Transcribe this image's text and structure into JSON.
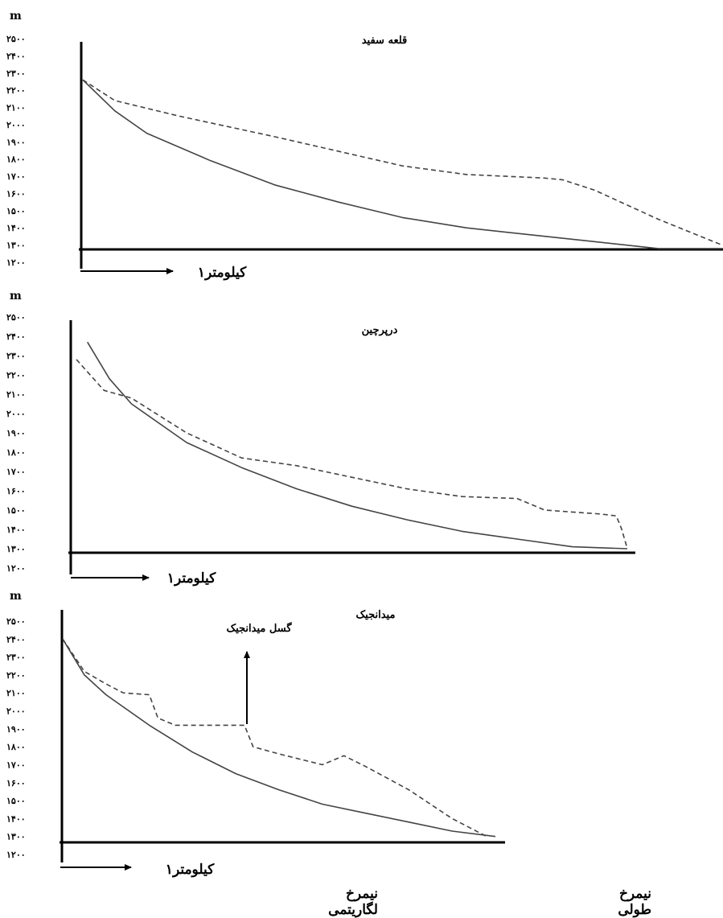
{
  "charts": [
    {
      "title": "قلعه سفید",
      "unit": "m",
      "scale_label": "۱کیلومتر",
      "yticks": [
        "۱۲۰۰",
        "۱۳۰۰",
        "۱۴۰۰",
        "۱۵۰۰",
        "۱۶۰۰",
        "۱۷۰۰",
        "۱۸۰۰",
        "۱۹۰۰",
        "۲۰۰۰",
        "۲۱۰۰",
        "۲۲۰۰",
        "۲۳۰۰",
        "۲۴۰۰",
        "۲۵۰۰"
      ]
    },
    {
      "title": "درپرچین",
      "unit": "m",
      "scale_label": "۱کیلومتر",
      "yticks": [
        "۱۲۰۰",
        "۱۳۰۰",
        "۱۴۰۰",
        "۱۵۰۰",
        "۱۶۰۰",
        "۱۷۰۰",
        "۱۸۰۰",
        "۱۹۰۰",
        "۲۰۰۰",
        "۲۱۰۰",
        "۲۲۰۰",
        "۲۳۰۰",
        "۲۴۰۰",
        "۲۵۰۰"
      ]
    },
    {
      "title": "میدانجیک",
      "unit": "m",
      "scale_label": "۱کیلومتر",
      "annotation": "گسل میدانجیک",
      "yticks": [
        "۱۲۰۰",
        "۱۳۰۰",
        "۱۴۰۰",
        "۱۵۰۰",
        "۱۶۰۰",
        "۱۷۰۰",
        "۱۸۰۰",
        "۱۹۰۰",
        "۲۰۰۰",
        "۲۱۰۰",
        "۲۲۰۰",
        "۲۳۰۰",
        "۲۴۰۰",
        "۲۵۰۰"
      ]
    }
  ],
  "legend": {
    "logarithmic": "نیمرخ لگاریتمی",
    "longitudinal": "نیمرخ طولی"
  },
  "chart_data": [
    {
      "type": "line",
      "title": "قلعه سفید",
      "ylabel": "m",
      "xlabel": "۱کیلومتر",
      "ylim": [
        1200,
        2500
      ],
      "xlim": [
        0,
        1
      ],
      "grid": false,
      "series": [
        {
          "name": "نیمرخ طولی",
          "style": "dashed",
          "x": [
            0,
            0.05,
            0.15,
            0.3,
            0.5,
            0.6,
            0.72,
            0.75,
            0.8,
            0.9,
            1.0
          ],
          "y": [
            2260,
            2140,
            2050,
            1930,
            1760,
            1710,
            1690,
            1680,
            1620,
            1450,
            1300
          ]
        },
        {
          "name": "نیمرخ لگاریتمی",
          "style": "solid",
          "x": [
            0,
            0.05,
            0.1,
            0.2,
            0.3,
            0.4,
            0.5,
            0.6,
            0.7,
            0.8,
            0.9,
            1.0
          ],
          "y": [
            2260,
            2080,
            1950,
            1790,
            1650,
            1550,
            1460,
            1400,
            1360,
            1320,
            1280,
            1280
          ]
        }
      ]
    },
    {
      "type": "line",
      "title": "درپرچین",
      "ylabel": "m",
      "xlabel": "۱کیلومتر",
      "ylim": [
        1200,
        2500
      ],
      "xlim": [
        0,
        1
      ],
      "grid": false,
      "series": [
        {
          "name": "نیمرخ طولی",
          "style": "dashed",
          "x": [
            0,
            0.05,
            0.1,
            0.2,
            0.3,
            0.4,
            0.5,
            0.6,
            0.7,
            0.8,
            0.85,
            0.9,
            0.95,
            0.98,
            0.99,
            1.0
          ],
          "y": [
            2280,
            2120,
            2080,
            1900,
            1770,
            1730,
            1670,
            1610,
            1570,
            1560,
            1500,
            1490,
            1480,
            1470,
            1400,
            1300
          ]
        },
        {
          "name": "نیمرخ لگاریتمی",
          "style": "solid",
          "x": [
            0.02,
            0.06,
            0.1,
            0.2,
            0.3,
            0.4,
            0.5,
            0.6,
            0.7,
            0.8,
            0.9,
            1.0
          ],
          "y": [
            2370,
            2180,
            2050,
            1850,
            1720,
            1610,
            1520,
            1450,
            1390,
            1350,
            1310,
            1300
          ]
        }
      ]
    },
    {
      "type": "line",
      "title": "میدانجیک",
      "ylabel": "m",
      "xlabel": "۱کیلومتر",
      "ylim": [
        1200,
        2500
      ],
      "xlim": [
        0,
        1
      ],
      "grid": false,
      "annotations": [
        {
          "text": "گسل میدانجیک",
          "x": 0.4,
          "y": 1820
        }
      ],
      "series": [
        {
          "name": "نیمرخ طولی",
          "style": "dashed",
          "x": [
            0,
            0.05,
            0.1,
            0.14,
            0.2,
            0.22,
            0.26,
            0.3,
            0.42,
            0.44,
            0.5,
            0.6,
            0.65,
            0.7,
            0.8,
            0.9,
            0.98
          ],
          "y": [
            2400,
            2220,
            2150,
            2100,
            2090,
            1960,
            1920,
            1920,
            1920,
            1800,
            1760,
            1700,
            1750,
            1690,
            1560,
            1400,
            1300
          ]
        },
        {
          "name": "نیمرخ لگاریتمی",
          "style": "solid",
          "x": [
            0,
            0.05,
            0.1,
            0.2,
            0.3,
            0.4,
            0.5,
            0.6,
            0.7,
            0.8,
            0.9,
            1.0
          ],
          "y": [
            2400,
            2200,
            2090,
            1920,
            1770,
            1650,
            1560,
            1480,
            1430,
            1380,
            1330,
            1300
          ]
        }
      ]
    }
  ]
}
